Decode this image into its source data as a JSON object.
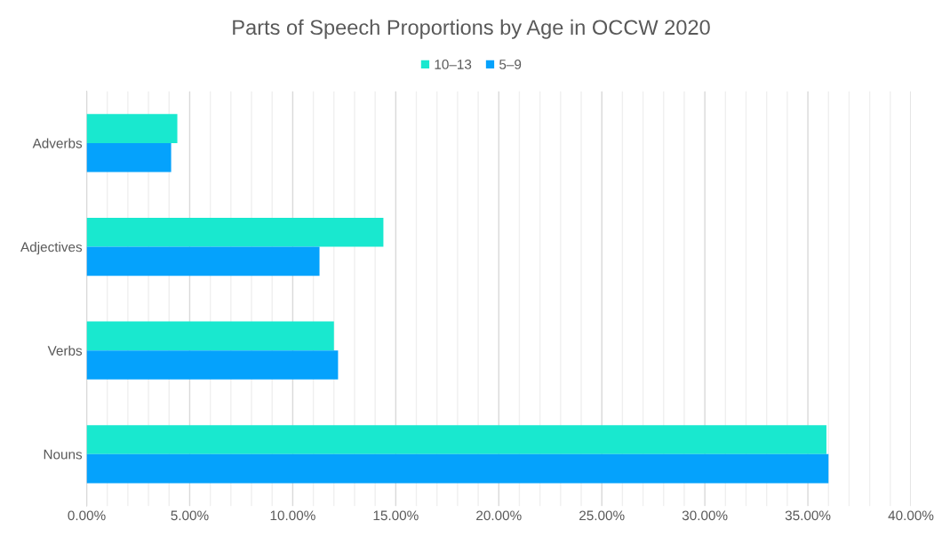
{
  "chart_data": {
    "type": "bar",
    "orientation": "horizontal",
    "title": "Parts of Speech Proportions by Age in OCCW 2020",
    "categories": [
      "Adverbs",
      "Adjectives",
      "Verbs",
      "Nouns"
    ],
    "series": [
      {
        "name": "10–13",
        "color": "#19e8cf",
        "values": [
          4.4,
          14.4,
          12.0,
          35.9
        ]
      },
      {
        "name": "5–9",
        "color": "#05a2fc",
        "values": [
          4.1,
          11.3,
          12.2,
          36.0
        ]
      }
    ],
    "xlim": [
      0,
      40
    ],
    "xticks": [
      {
        "value": 0,
        "label": "0.00%"
      },
      {
        "value": 1,
        "label": null
      },
      {
        "value": 2,
        "label": null
      },
      {
        "value": 3,
        "label": null
      },
      {
        "value": 4,
        "label": null
      },
      {
        "value": 5,
        "label": "5.00%"
      },
      {
        "value": 6,
        "label": null
      },
      {
        "value": 7,
        "label": null
      },
      {
        "value": 8,
        "label": null
      },
      {
        "value": 9,
        "label": null
      },
      {
        "value": 10,
        "label": "10.00%"
      },
      {
        "value": 11,
        "label": null
      },
      {
        "value": 12,
        "label": null
      },
      {
        "value": 13,
        "label": null
      },
      {
        "value": 14,
        "label": null
      },
      {
        "value": 15,
        "label": "15.00%"
      },
      {
        "value": 16,
        "label": null
      },
      {
        "value": 17,
        "label": null
      },
      {
        "value": 18,
        "label": null
      },
      {
        "value": 19,
        "label": null
      },
      {
        "value": 20,
        "label": "20.00%"
      },
      {
        "value": 21,
        "label": null
      },
      {
        "value": 22,
        "label": null
      },
      {
        "value": 23,
        "label": null
      },
      {
        "value": 24,
        "label": null
      },
      {
        "value": 25,
        "label": "25.00%"
      },
      {
        "value": 26,
        "label": null
      },
      {
        "value": 27,
        "label": null
      },
      {
        "value": 28,
        "label": null
      },
      {
        "value": 29,
        "label": null
      },
      {
        "value": 30,
        "label": "30.00%"
      },
      {
        "value": 31,
        "label": null
      },
      {
        "value": 32,
        "label": null
      },
      {
        "value": 33,
        "label": null
      },
      {
        "value": 34,
        "label": null
      },
      {
        "value": 35,
        "label": "35.00%"
      },
      {
        "value": 36,
        "label": null
      },
      {
        "value": 37,
        "label": null
      },
      {
        "value": 38,
        "label": null
      },
      {
        "value": 39,
        "label": null
      },
      {
        "value": 40,
        "label": "40.00%"
      }
    ],
    "grid": "x",
    "legend": "top"
  }
}
